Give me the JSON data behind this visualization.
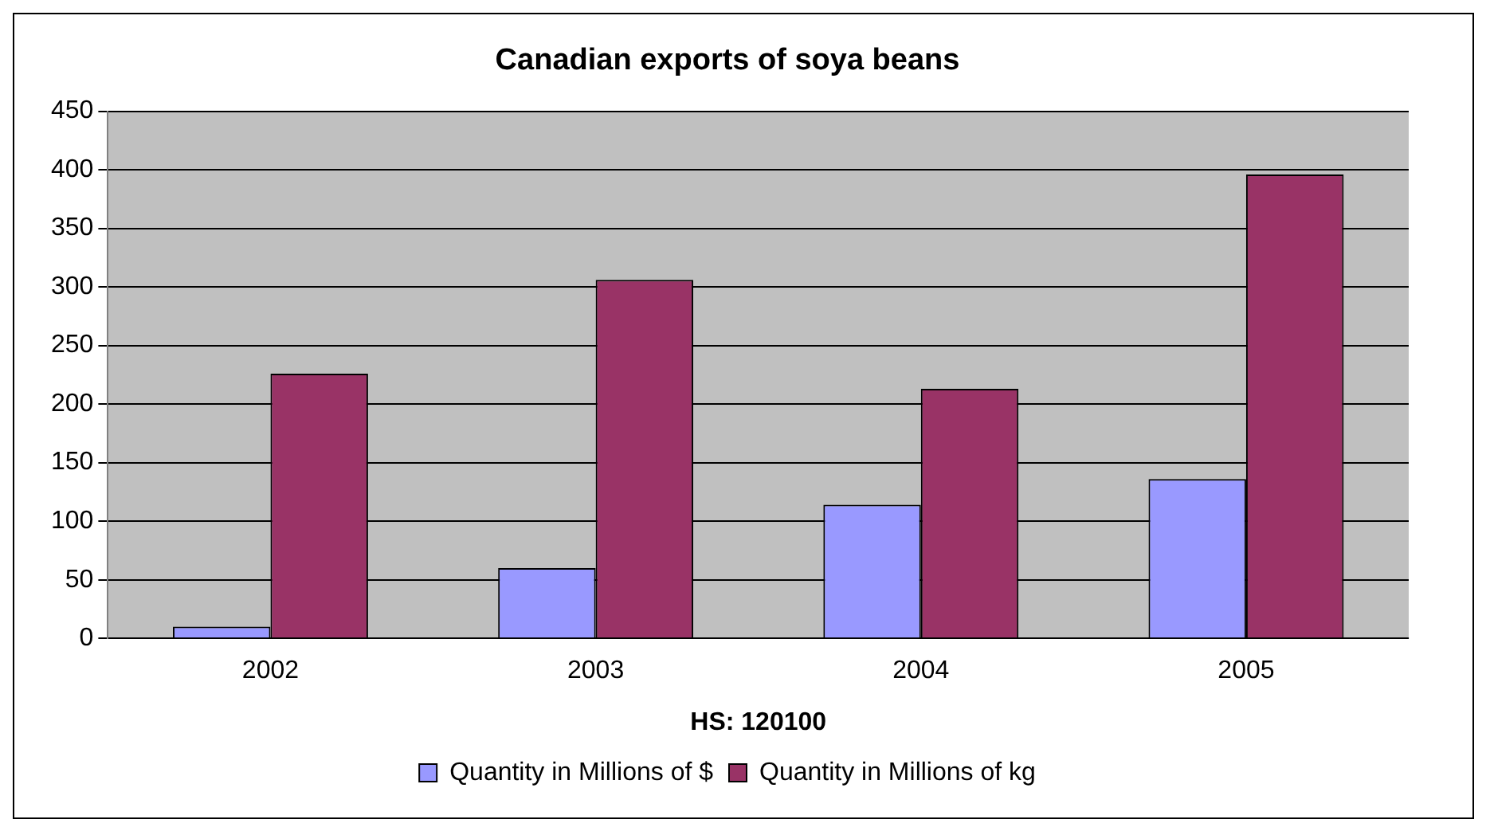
{
  "chart_data": {
    "type": "bar",
    "title": "Canadian exports of soya beans",
    "xlabel": "HS: 120100",
    "categories": [
      "2002",
      "2003",
      "2004",
      "2005"
    ],
    "series": [
      {
        "name": "Quantity in Millions of $",
        "color": "#9999ff",
        "values": [
          10,
          60,
          114,
          136
        ]
      },
      {
        "name": "Quantity in Millions of kg",
        "color": "#993366",
        "values": [
          226,
          306,
          213,
          396
        ]
      }
    ],
    "ylim": [
      0,
      450
    ],
    "yticks": [
      0,
      50,
      100,
      150,
      200,
      250,
      300,
      350,
      400,
      450
    ],
    "grid": "y",
    "legend": "bottom"
  }
}
